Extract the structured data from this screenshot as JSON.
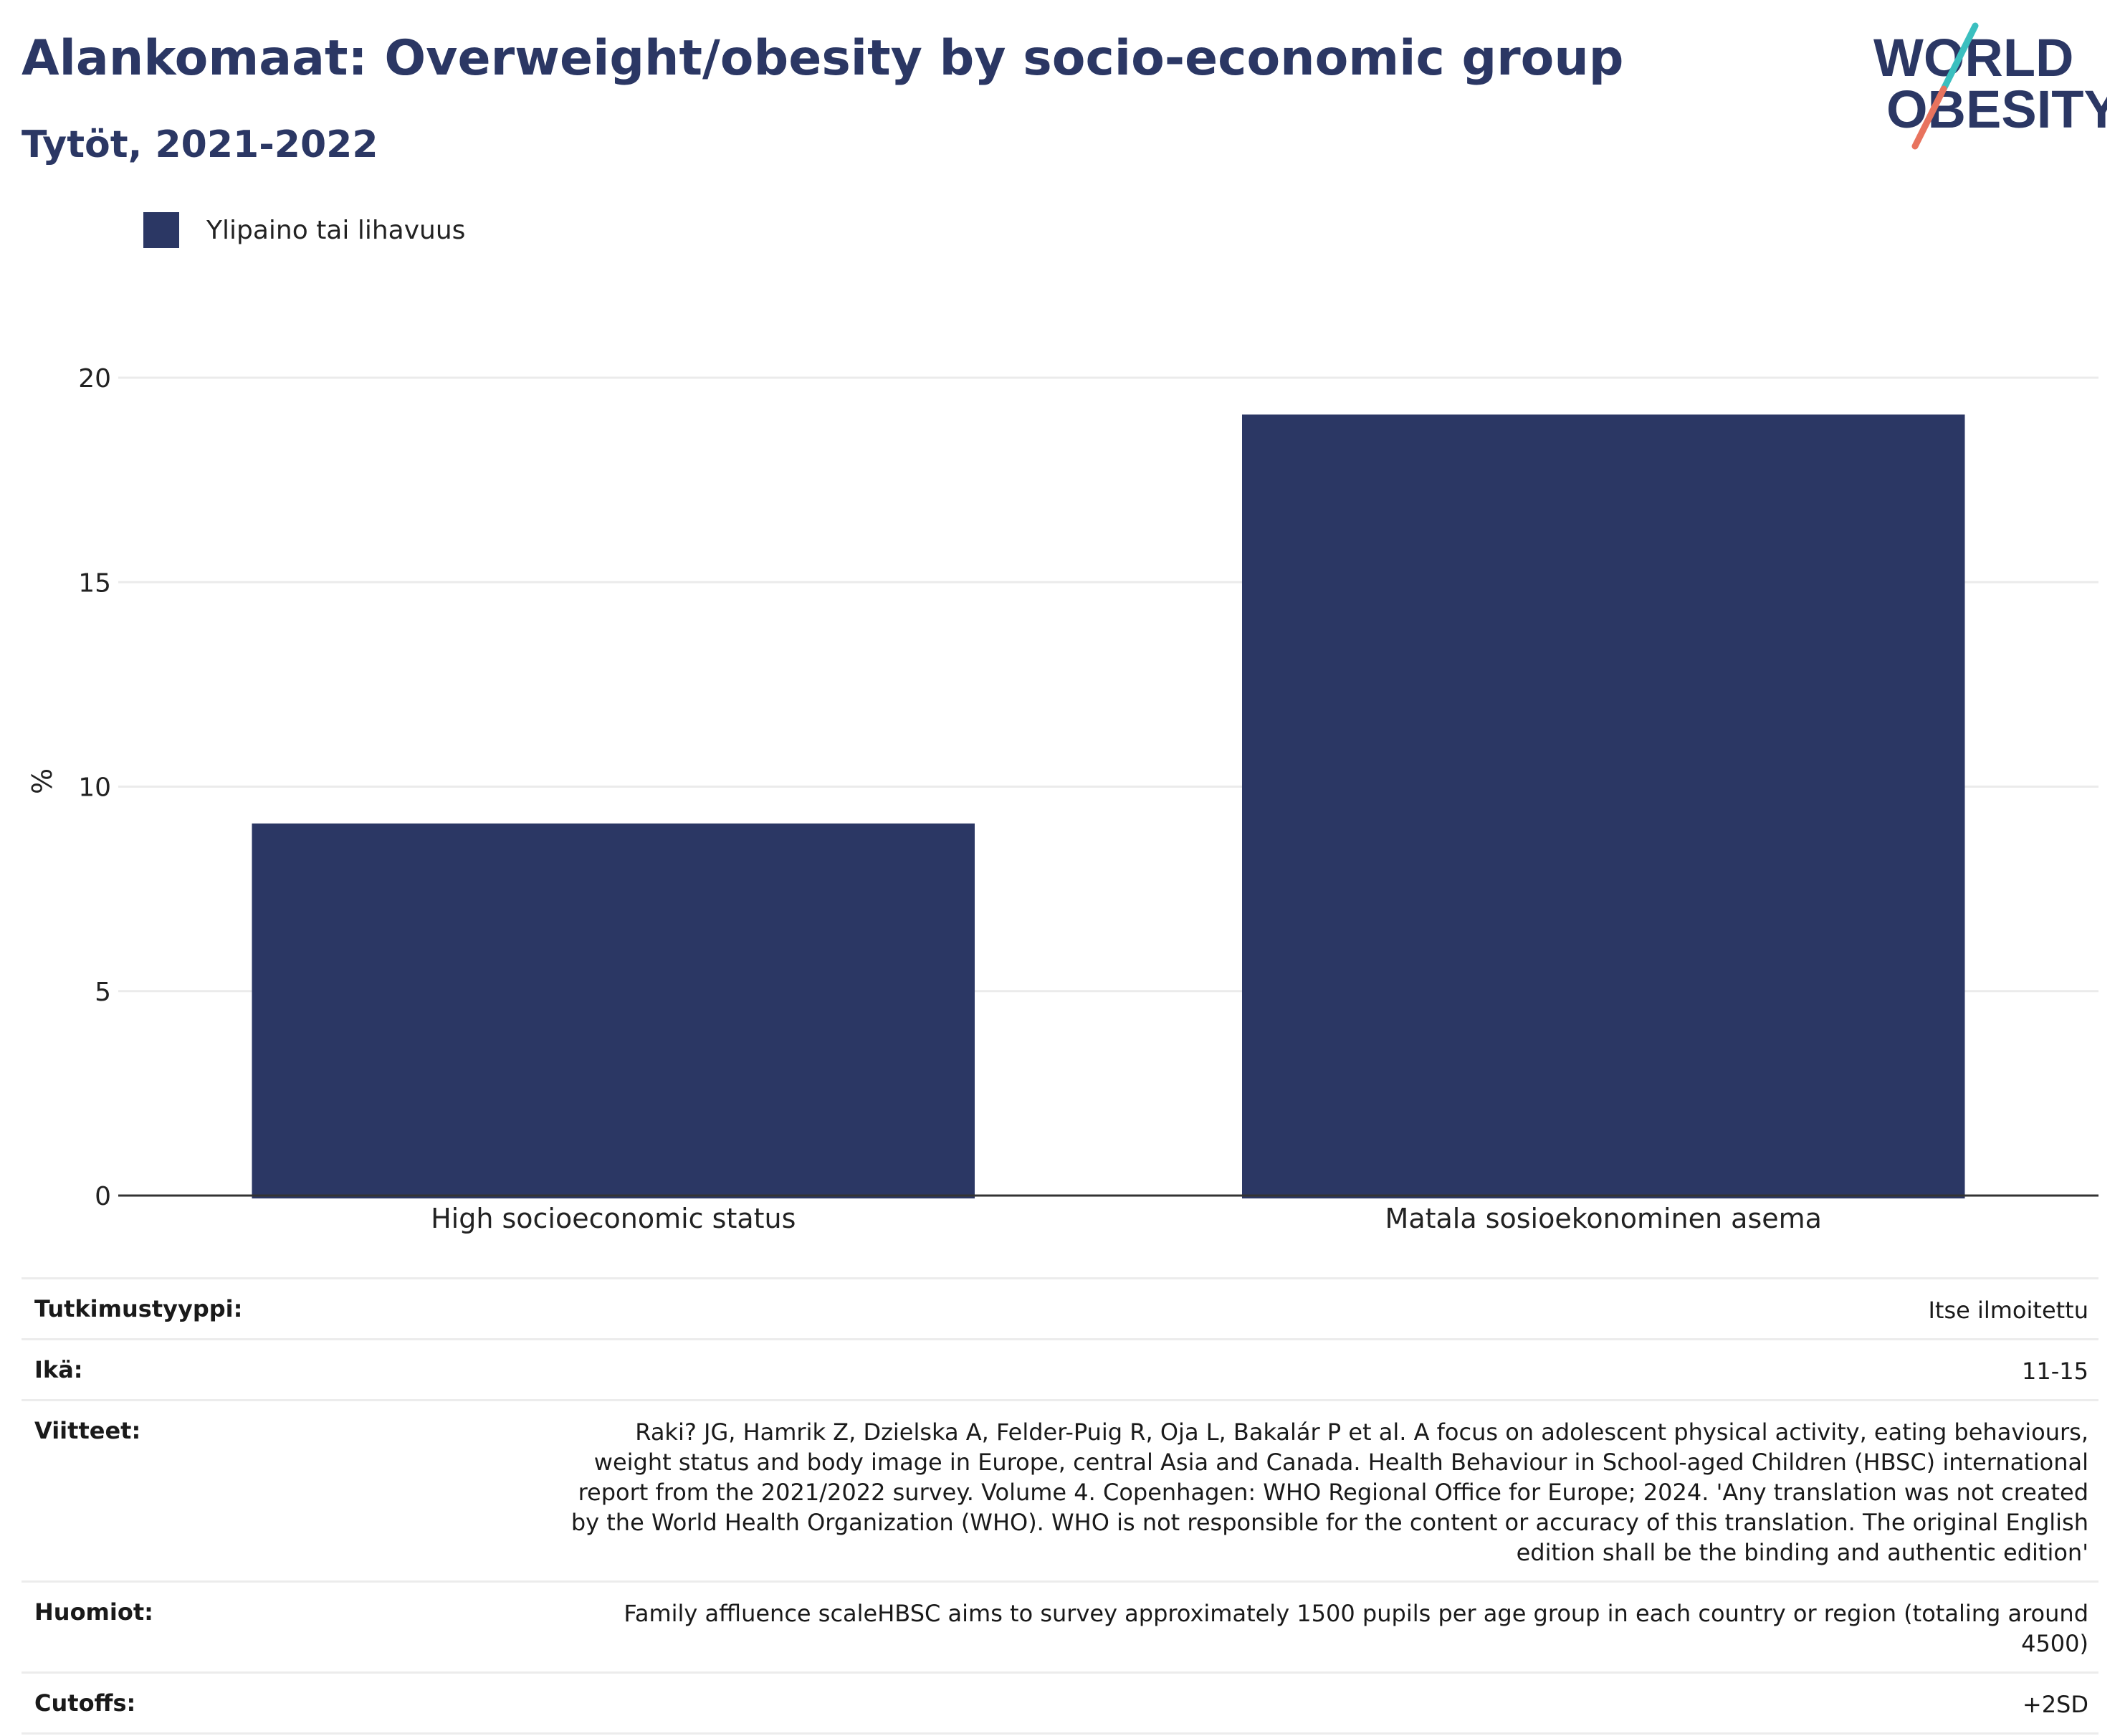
{
  "header": {
    "title": "Alankomaat: Overweight/obesity by socio-economic group",
    "subtitle": "Tytöt, 2021-2022"
  },
  "logo": {
    "line1": "WORLD",
    "line2": "OBESITY"
  },
  "colors": {
    "bar": "#2b3764",
    "title": "#2b3764",
    "logo_teal": "#3bbfbf",
    "logo_coral": "#e8735e"
  },
  "chart_data": {
    "type": "bar",
    "categories": [
      "High socioeconomic status",
      "Matala sosioekonominen asema"
    ],
    "series": [
      {
        "name": "Ylipaino tai lihavuus",
        "values": [
          9.1,
          19.1
        ]
      }
    ],
    "ylabel": "%",
    "ylim": [
      0,
      21
    ],
    "yticks": [
      0,
      5,
      10,
      15,
      20
    ],
    "grid": true,
    "legend": "top-left"
  },
  "meta": [
    {
      "key": "Tutkimustyyppi:",
      "value": "Itse ilmoitettu"
    },
    {
      "key": "Ikä:",
      "value": "11-15"
    },
    {
      "key": "Viitteet:",
      "value": "Raki? JG, Hamrik Z, Dzielska A, Felder-Puig R, Oja L, Bakalár P et al. A focus on adolescent physical activity, eating behaviours, weight status and body image in Europe, central Asia and Canada. Health Behaviour in School-aged Children (HBSC) international report from the 2021/2022 survey. Volume 4. Copenhagen: WHO Regional Office for Europe; 2024. 'Any translation was not created by the World Health Organization (WHO). WHO is not responsible for the content or accuracy of this translation. The original English edition shall be the binding and authentic edition'"
    },
    {
      "key": "Huomiot:",
      "value": "Family affluence scaleHBSC aims to survey approximately 1500 pupils per age group in each country or region (totaling around 4500)"
    },
    {
      "key": "Cutoffs:",
      "value": "+2SD"
    }
  ]
}
